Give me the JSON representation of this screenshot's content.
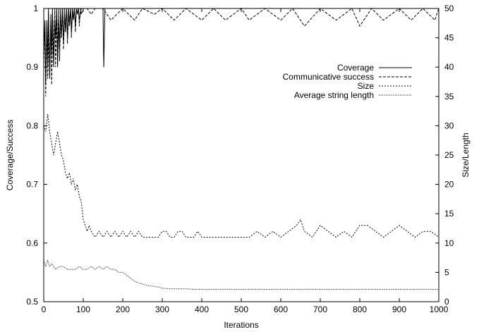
{
  "chart_data": {
    "type": "line",
    "xlabel": "Iterations",
    "ylabel_left": "Coverage/Success",
    "ylabel_right": "Size/Length",
    "xlim": [
      0,
      1000
    ],
    "ylim_left": [
      0.5,
      1
    ],
    "ylim_right": [
      0,
      50
    ],
    "x_ticks": [
      0,
      100,
      200,
      300,
      400,
      500,
      600,
      700,
      800,
      900,
      1000
    ],
    "y_left_ticks": [
      0.5,
      0.6,
      0.7,
      0.8,
      0.9,
      1
    ],
    "y_right_ticks": [
      0,
      5,
      10,
      15,
      20,
      25,
      30,
      35,
      40,
      45,
      50
    ],
    "legend_position": "upper-right",
    "grid": false,
    "series": [
      {
        "name": "Coverage",
        "axis": "left",
        "style": "solid",
        "x": [
          0,
          3,
          5,
          8,
          10,
          12,
          15,
          18,
          20,
          22,
          25,
          28,
          30,
          33,
          35,
          38,
          40,
          43,
          45,
          48,
          50,
          53,
          55,
          58,
          60,
          63,
          65,
          68,
          70,
          73,
          75,
          78,
          80,
          83,
          85,
          88,
          90,
          95,
          100,
          110,
          120,
          140,
          150,
          152,
          155,
          160,
          200,
          300,
          400,
          500,
          600,
          700,
          800,
          900,
          1000
        ],
        "values": [
          0.92,
          0.98,
          0.87,
          0.98,
          0.9,
          1.0,
          0.88,
          0.98,
          0.92,
          1.0,
          0.9,
          0.98,
          0.95,
          1.0,
          0.9,
          0.98,
          0.93,
          1.0,
          0.95,
          1.0,
          0.94,
          0.99,
          0.96,
          1.0,
          0.95,
          1.0,
          0.97,
          1.0,
          0.96,
          1.0,
          0.98,
          1.0,
          0.97,
          1.0,
          0.99,
          1.0,
          0.98,
          1.0,
          1.0,
          1.0,
          1.0,
          1.0,
          1.0,
          0.9,
          1.0,
          1.0,
          1.0,
          1.0,
          1.0,
          1.0,
          1.0,
          1.0,
          1.0,
          1.0,
          1.0
        ]
      },
      {
        "name": "Communicative success",
        "axis": "left",
        "style": "dashed",
        "x": [
          0,
          3,
          5,
          8,
          10,
          13,
          15,
          18,
          20,
          23,
          25,
          28,
          30,
          33,
          35,
          38,
          40,
          43,
          45,
          48,
          50,
          53,
          55,
          58,
          60,
          63,
          65,
          68,
          70,
          73,
          75,
          78,
          80,
          83,
          85,
          88,
          90,
          93,
          95,
          100,
          110,
          120,
          130,
          150,
          170,
          200,
          230,
          250,
          280,
          300,
          330,
          360,
          400,
          430,
          460,
          500,
          520,
          560,
          600,
          630,
          660,
          700,
          740,
          780,
          800,
          830,
          860,
          900,
          930,
          960,
          990,
          1000
        ],
        "values": [
          0.9,
          0.97,
          0.85,
          0.98,
          0.88,
          0.96,
          0.9,
          0.99,
          0.87,
          0.98,
          0.92,
          1.0,
          0.9,
          0.98,
          0.93,
          1.0,
          0.91,
          0.99,
          0.95,
          1.0,
          0.93,
          1.0,
          0.96,
          1.0,
          0.94,
          1.0,
          0.97,
          1.0,
          0.95,
          1.0,
          0.98,
          1.0,
          0.96,
          1.0,
          0.99,
          1.0,
          0.97,
          1.0,
          0.99,
          1.0,
          1.0,
          0.99,
          1.0,
          1.0,
          0.98,
          1.0,
          0.98,
          1.0,
          0.99,
          1.0,
          0.98,
          1.0,
          0.98,
          1.0,
          0.98,
          1.0,
          0.98,
          1.0,
          0.98,
          1.0,
          0.97,
          1.0,
          0.98,
          1.0,
          0.97,
          1.0,
          0.98,
          1.0,
          0.98,
          1.0,
          0.98,
          1.0
        ]
      },
      {
        "name": "Size",
        "axis": "right",
        "style": "dotted",
        "x": [
          0,
          5,
          10,
          15,
          20,
          25,
          30,
          35,
          40,
          45,
          50,
          55,
          60,
          65,
          70,
          75,
          80,
          85,
          90,
          95,
          100,
          105,
          110,
          115,
          120,
          130,
          140,
          150,
          160,
          170,
          180,
          190,
          200,
          210,
          220,
          230,
          240,
          250,
          260,
          270,
          280,
          290,
          300,
          310,
          320,
          330,
          340,
          350,
          360,
          370,
          380,
          390,
          400,
          420,
          440,
          460,
          480,
          500,
          520,
          540,
          560,
          580,
          600,
          620,
          640,
          650,
          660,
          680,
          700,
          720,
          740,
          760,
          780,
          800,
          810,
          820,
          840,
          860,
          880,
          900,
          920,
          940,
          960,
          980,
          1000
        ],
        "values": [
          30,
          29,
          32,
          29,
          27,
          25,
          27,
          29,
          27,
          25,
          24,
          22,
          21,
          22,
          20,
          21,
          19,
          20,
          18,
          17,
          14,
          13,
          12,
          13,
          12,
          11,
          12,
          11,
          12,
          11,
          12,
          11,
          12,
          11,
          12,
          11,
          12,
          11,
          11,
          11,
          11,
          11,
          12,
          12,
          11,
          11,
          12,
          12,
          11,
          11,
          11,
          12,
          11,
          11,
          11,
          11,
          11,
          11,
          11,
          12,
          11,
          12,
          11,
          12,
          13,
          14,
          12,
          11,
          13,
          12,
          11,
          12,
          11,
          13,
          13,
          13,
          12,
          11,
          12,
          13,
          12,
          11,
          12,
          12,
          11
        ]
      },
      {
        "name": "Average string length",
        "axis": "right",
        "style": "fine-dotted",
        "x": [
          0,
          5,
          10,
          15,
          20,
          25,
          30,
          40,
          50,
          60,
          70,
          80,
          90,
          100,
          110,
          120,
          130,
          140,
          150,
          160,
          170,
          180,
          190,
          200,
          210,
          220,
          230,
          240,
          250,
          260,
          270,
          280,
          290,
          300,
          320,
          340,
          360,
          380,
          400,
          450,
          500,
          550,
          600,
          650,
          700,
          750,
          800,
          850,
          900,
          950,
          1000
        ],
        "values": [
          7,
          6,
          7,
          6,
          6.5,
          6,
          5.5,
          6,
          6,
          5.5,
          5.5,
          5.5,
          6,
          5.5,
          5.5,
          6,
          5.5,
          6,
          5.5,
          6,
          5.5,
          5.5,
          5,
          5,
          4.5,
          4,
          3.5,
          3.2,
          3,
          2.8,
          2.7,
          2.6,
          2.5,
          2.3,
          2.2,
          2.2,
          2.2,
          2.1,
          2.1,
          2.1,
          2.1,
          2.1,
          2.1,
          2.1,
          2.1,
          2.1,
          2.1,
          2.1,
          2.1,
          2.1,
          2.1
        ]
      }
    ]
  }
}
